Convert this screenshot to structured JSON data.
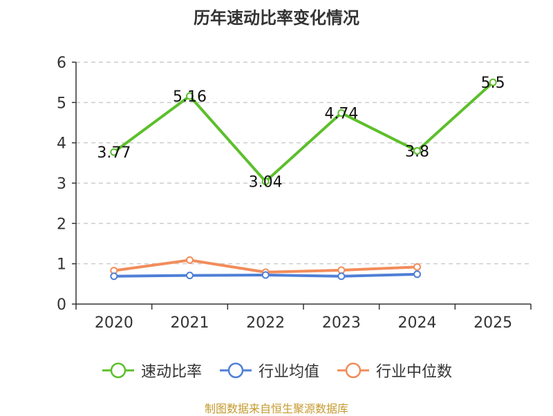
{
  "chart_data": {
    "type": "line",
    "title": "历年速动比率变化情况",
    "categories": [
      "2020",
      "2021",
      "2022",
      "2023",
      "2024",
      "2025"
    ],
    "ylim": [
      0,
      6
    ],
    "yticks": [
      0,
      1,
      2,
      3,
      4,
      5,
      6
    ],
    "grid": true,
    "legend_position": "bottom",
    "series": [
      {
        "name": "速动比率",
        "color": "#5cbf2a",
        "values": [
          3.77,
          5.16,
          3.04,
          4.74,
          3.8,
          5.5
        ],
        "labels": [
          "3.77",
          "5.16",
          "3.04",
          "4.74",
          "3.8",
          "5.5"
        ]
      },
      {
        "name": "行业均值",
        "color": "#4f7fd6",
        "values": [
          0.69,
          0.71,
          0.72,
          0.69,
          0.74,
          null
        ]
      },
      {
        "name": "行业中位数",
        "color": "#f28c5a",
        "values": [
          0.83,
          1.09,
          0.79,
          0.84,
          0.92,
          null
        ]
      }
    ]
  },
  "source": "制图数据来自恒生聚源数据库"
}
